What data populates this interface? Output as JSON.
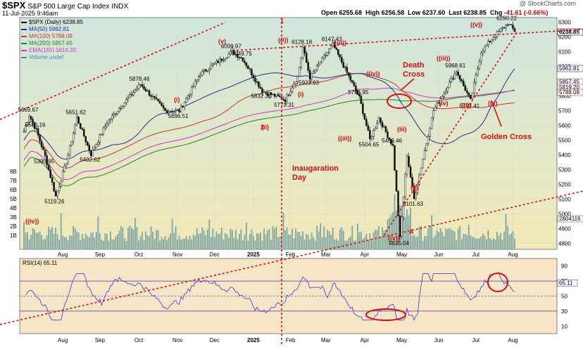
{
  "header": {
    "symbol": "$SPX",
    "description": "S&P 500 Large Cap Index",
    "exchange": "INDX",
    "date_time": "11-Jul-2025 9:46am",
    "credit": "@ StockCharts.com",
    "open_label": "Open",
    "open": "6255.68",
    "high_label": "High",
    "high": "6256.58",
    "low_label": "Low",
    "low": "6237.60",
    "last_label": "Last",
    "last": "6238.85",
    "chg_label": "Chg",
    "chg": "-41.61 (-0.66%)"
  },
  "legend": [
    {
      "label": "$SPX (Daily) 6238.85",
      "color": "#000000"
    },
    {
      "label": "MA(50) 5962.81",
      "color": "#1f2f8f"
    },
    {
      "label": "MA(100) 5788.09",
      "color": "#c0392b"
    },
    {
      "label": "MA(200) 5857.45",
      "color": "#2e7d1e"
    },
    {
      "label": "EMA(165) 5819.20",
      "color": "#c43ac4"
    },
    {
      "label": "Volume undef",
      "color": "#4a86c8"
    }
  ],
  "colors": {
    "price_bg_top": "#cfe6dc",
    "price_bg_bottom": "#f3e9b8",
    "rsi_bg": "#f6e5c6",
    "annotation": "#d01010",
    "candle": "#111111",
    "volume": "#7fa6a4",
    "rsi_line": "#4d4dc9"
  },
  "annotations": {
    "death_cross": [
      "Death",
      "Cross"
    ],
    "golden_cross": "Golden Cross",
    "inauguration": [
      "Inaugaration",
      "Day"
    ],
    "wave_labels": [
      "((iv))",
      "(v)",
      "(i)",
      "(ii)",
      "((i))",
      "((ii))",
      "((iii))",
      "((iv))",
      "((v))",
      "(i)",
      "(ii)",
      "((v))",
      "(iii)",
      "(iv)",
      "((i))",
      "((iii))",
      "(iv)",
      "A",
      "1",
      "2"
    ]
  },
  "chart_data": [
    {
      "type": "candlestick",
      "title": "$SPX (Daily)",
      "x_tick_labels": [
        "Aug",
        "Sep",
        "Oct",
        "Nov",
        "Dec",
        "2025",
        "Feb",
        "Mar",
        "Apr",
        "May",
        "Jun",
        "Jul",
        "Aug"
      ],
      "y_tick_labels": [
        "6300",
        "6200",
        "6100",
        "6000",
        "5900",
        "5800",
        "5700",
        "5600",
        "5500",
        "5400",
        "5300",
        "5200",
        "5100",
        "5000",
        "4900",
        "4800"
      ],
      "volume_tick_labels": [
        "8B",
        "7B",
        "6B",
        "5B",
        "4B",
        "3B",
        "2B",
        "1B"
      ],
      "ylim": [
        4760,
        6330
      ],
      "right_axis_tags": [
        {
          "label": "6238.85",
          "style": "last"
        },
        {
          "label": "5962.81",
          "style": "ma50"
        },
        {
          "label": "5857.45",
          "style": "ma200"
        },
        {
          "label": "5819.20",
          "style": "ema165"
        },
        {
          "label": "5788.09",
          "style": "ma100"
        },
        {
          "label": "2804116",
          "style": "volume"
        }
      ],
      "price_labels": [
        {
          "text": "5669.67",
          "date": "Jul 2024",
          "value": 5669.67
        },
        {
          "text": "5566.16",
          "date": "Jul 2024",
          "value": 5566.16
        },
        {
          "text": "5390.95",
          "date": "Jul 2024",
          "value": 5390.95
        },
        {
          "text": "5119.26",
          "date": "Aug 5 2024",
          "value": 5119.26
        },
        {
          "text": "5651.62",
          "date": "Aug 2024",
          "value": 5651.62
        },
        {
          "text": "5402.62",
          "date": "Sep 6 2024",
          "value": 5402.62
        },
        {
          "text": "5878.46",
          "date": "Oct 2024",
          "value": 5878.46
        },
        {
          "text": "5696.51",
          "date": "Nov 4 2024",
          "value": 5696.51
        },
        {
          "text": "6099.97",
          "date": "Dec 6 2024",
          "value": 6099.97
        },
        {
          "text": "6049.75",
          "date": "Dec 2024",
          "value": 6049.75
        },
        {
          "text": "5832.30",
          "date": "Dec 2024",
          "value": 5832.3
        },
        {
          "text": "5773.31",
          "date": "Jan 13 2025",
          "value": 5773.31
        },
        {
          "text": "6128.18",
          "date": "Jan 24 2025",
          "value": 6128.18
        },
        {
          "text": "5923.93",
          "date": "Jan 27 2025",
          "value": 5923.93
        },
        {
          "text": "6147.43",
          "date": "Feb 19 2025",
          "value": 6147.43
        },
        {
          "text": "5786.95",
          "date": "Mar 2025",
          "value": 5786.95
        },
        {
          "text": "5504.65",
          "date": "Mar 13 2025",
          "value": 5504.65
        },
        {
          "text": "5459.46",
          "date": "Apr 2025",
          "value": 5459.46
        },
        {
          "text": "4835.04",
          "date": "Apr 7 2025",
          "value": 4835.04
        },
        {
          "text": "5101.63",
          "date": "Apr 21 2025",
          "value": 5101.63
        },
        {
          "text": "5968.61",
          "date": "May 2025",
          "value": 5968.61
        },
        {
          "text": "5767.41",
          "date": "May 2025",
          "value": 5767.41
        },
        {
          "text": "6290.22",
          "date": "Jul 2025",
          "value": 6290.22
        }
      ],
      "series": [
        {
          "name": "MA(50)",
          "last": 5962.81
        },
        {
          "name": "MA(100)",
          "last": 5788.09
        },
        {
          "name": "MA(200)",
          "last": 5857.45
        },
        {
          "name": "EMA(165)",
          "last": 5819.2
        }
      ]
    },
    {
      "type": "line",
      "title": "RSI(14) 65.11",
      "x_tick_labels": [
        "Aug",
        "Sep",
        "Oct",
        "Nov",
        "Dec",
        "2025",
        "Feb",
        "Mar",
        "Apr",
        "May",
        "Jun",
        "Jul",
        "Aug"
      ],
      "y_tick_labels": [
        "90",
        "70",
        "50",
        "30",
        "10"
      ],
      "ylim": [
        0,
        100
      ],
      "reference_lines": [
        70,
        30
      ],
      "last_tag": "65.11"
    }
  ]
}
